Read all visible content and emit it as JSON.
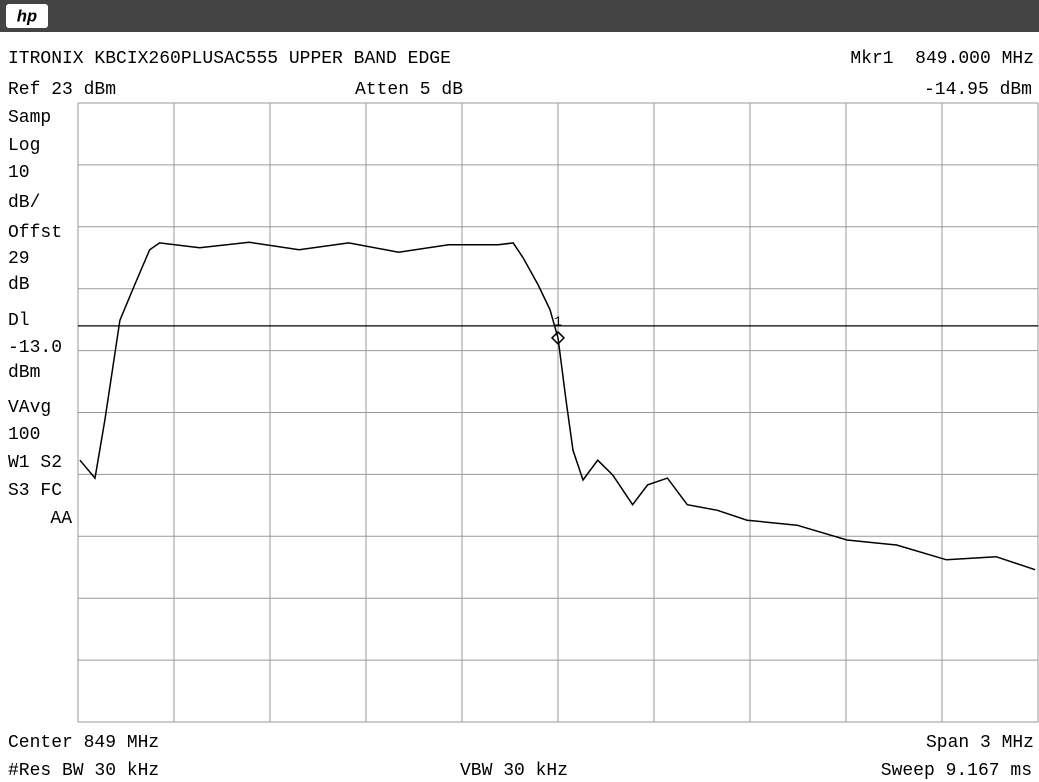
{
  "header": {
    "logo": "hp",
    "title": "ITRONIX KBCIX260PLUSAC555 UPPER BAND EDGE",
    "marker_readout": "Mkr1  849.000 MHz",
    "ref": "Ref 23 dBm",
    "atten": "Atten 5 dB",
    "marker_level": "-14.95 dBm"
  },
  "side_labels": [
    "Samp",
    "Log",
    "10",
    "dB/",
    "Offst",
    "29",
    "dB",
    "Dl",
    "-13.0",
    "dBm",
    "VAvg",
    "100",
    "W1  S2",
    "S3  FC",
    "AA"
  ],
  "footer": {
    "center": "Center 849 MHz",
    "span": "Span 3 MHz",
    "rbw": "#Res BW 30 kHz",
    "vbw": "VBW 30 kHz",
    "sweep": "Sweep 9.167 ms"
  },
  "chart_data": {
    "type": "line",
    "color": "#000000",
    "x": [
      847.506,
      847.553,
      847.584,
      847.631,
      847.677,
      847.724,
      847.755,
      847.88,
      848.035,
      848.191,
      848.346,
      848.502,
      848.658,
      848.813,
      848.86,
      848.891,
      848.938,
      848.975,
      849.0,
      849.025,
      849.047,
      849.078,
      849.124,
      849.171,
      849.233,
      849.28,
      849.342,
      849.404,
      849.498,
      849.591,
      849.747,
      849.903,
      850.058,
      850.214,
      850.369,
      850.491
    ],
    "values": [
      -34.7,
      -37.6,
      -28.2,
      -12.1,
      -6.4,
      -0.7,
      0.4,
      -0.4,
      0.5,
      -0.7,
      0.4,
      -1.1,
      0.1,
      0.1,
      0.4,
      -2.0,
      -6.4,
      -10.4,
      -14.95,
      -25.0,
      -33.1,
      -37.9,
      -34.7,
      -37.1,
      -41.9,
      -38.7,
      -37.6,
      -41.9,
      -42.8,
      -44.4,
      -45.2,
      -47.6,
      -48.4,
      -50.8,
      -50.3,
      -52.4
    ],
    "xlim": [
      847.5,
      850.5
    ],
    "ylim": [
      -77,
      23
    ],
    "xticks": [
      847.5,
      847.8,
      848.1,
      848.4,
      848.7,
      849.0,
      849.3,
      849.6,
      849.9,
      850.2,
      850.5
    ],
    "yticks": [
      23,
      13,
      3,
      -7,
      -17,
      -27,
      -37,
      -47,
      -57,
      -67,
      -77
    ],
    "grid": true,
    "display_line": -13,
    "marker": {
      "label": "1",
      "x": 849.0,
      "value": -14.95
    }
  }
}
